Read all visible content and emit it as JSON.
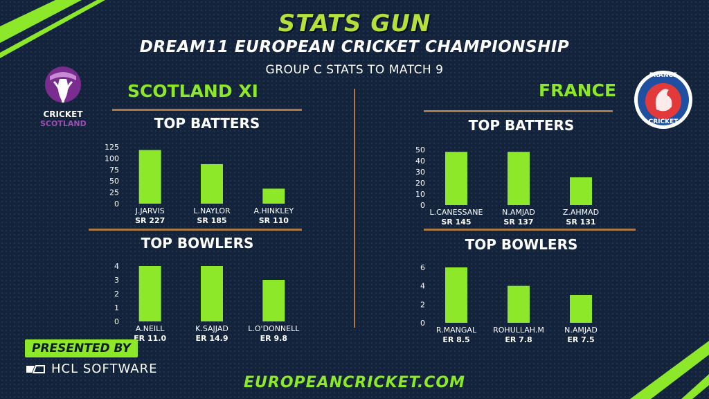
{
  "header": {
    "brand": "STATS GUN",
    "title": "DREAM11 EUROPEAN CRICKET CHAMPIONSHIP",
    "subtitle": "GROUP C STATS TO MATCH 9"
  },
  "logos": {
    "left_line1": "CRICKET",
    "left_line2": "SCOTLAND",
    "right_top": "FRANCE",
    "right_bottom": "CRICKET"
  },
  "teams": {
    "left": "SCOTLAND XI",
    "right": "FRANCE"
  },
  "panel_titles": {
    "batters": "TOP BATTERS",
    "bowlers": "TOP BOWLERS"
  },
  "footer": {
    "presented_by": "PRESENTED BY",
    "sponsor": "HCL SOFTWARE",
    "url": "EUROPEANCRICKET.COM"
  },
  "colors": {
    "background": "#12233b",
    "bar": "#8ee82a",
    "accent_line": "#a97a45",
    "brand": "#b6e03a"
  },
  "chart_data": [
    {
      "type": "bar",
      "title": "TOP BATTERS",
      "team": "SCOTLAND XI",
      "categories": [
        "J.JARVIS",
        "L.NAYLOR",
        "A.HINKLEY"
      ],
      "values": [
        118,
        87,
        33
      ],
      "sublabels": [
        "SR 227",
        "SR 185",
        "SR 110"
      ],
      "ylim": [
        0,
        125
      ],
      "yticks": [
        0,
        25,
        50,
        75,
        100,
        125
      ],
      "grid": false
    },
    {
      "type": "bar",
      "title": "TOP BOWLERS",
      "team": "SCOTLAND XI",
      "categories": [
        "A.NEILL",
        "K.SAJJAD",
        "L.O'DONNELL"
      ],
      "values": [
        4,
        4,
        3
      ],
      "sublabels": [
        "ER 11.0",
        "ER 14.9",
        "ER 9.8"
      ],
      "ylim": [
        0,
        4
      ],
      "yticks": [
        0,
        1,
        2,
        3,
        4
      ],
      "grid": false
    },
    {
      "type": "bar",
      "title": "TOP BATTERS",
      "team": "FRANCE",
      "categories": [
        "L.CANESSANE",
        "N.AMJAD",
        "Z.AHMAD"
      ],
      "values": [
        48,
        48,
        25
      ],
      "sublabels": [
        "SR 145",
        "SR 137",
        "SR 131"
      ],
      "ylim": [
        0,
        50
      ],
      "yticks": [
        0,
        10,
        20,
        30,
        40,
        50
      ],
      "grid": false
    },
    {
      "type": "bar",
      "title": "TOP BOWLERS",
      "team": "FRANCE",
      "categories": [
        "R.MANGAL",
        "ROHULLAH.M",
        "N.AMJAD"
      ],
      "values": [
        6,
        4,
        3
      ],
      "sublabels": [
        "ER 8.5",
        "ER 7.8",
        "ER 7.5"
      ],
      "ylim": [
        0,
        6
      ],
      "yticks": [
        0,
        2,
        4,
        6
      ],
      "grid": false
    }
  ]
}
